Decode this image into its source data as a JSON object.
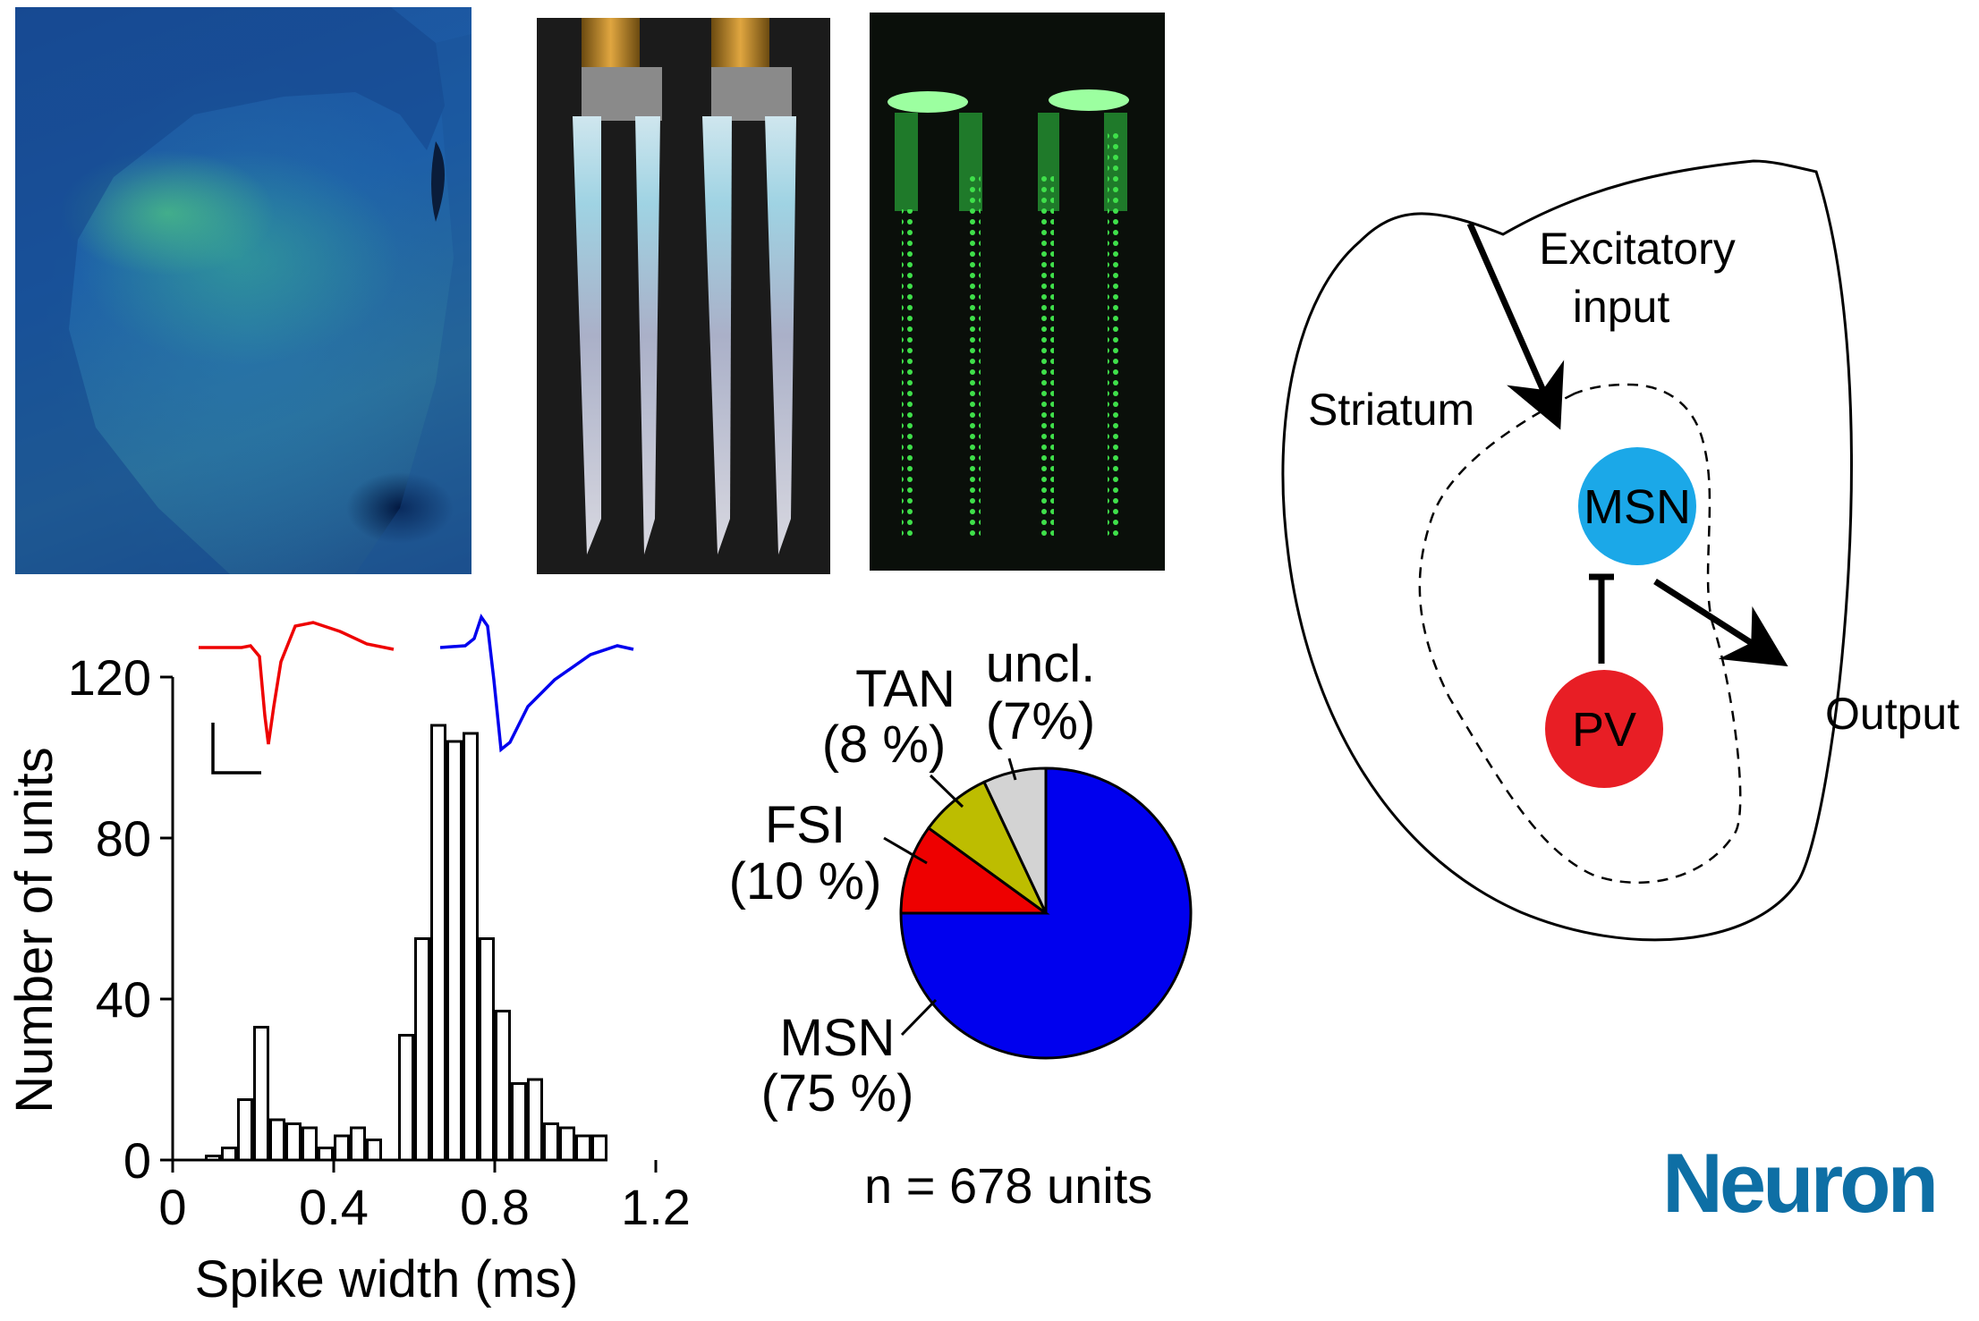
{
  "colors": {
    "bar_fill": "#ffffff",
    "bar_stroke": "#000000",
    "msn_blue": "#0000ee",
    "fsi_red": "#ee0000",
    "tan_yellow": "#bdbd00",
    "uncl_gray": "#d3d3d3",
    "msn_node": "#1ba8e8",
    "pv_node": "#e81e25",
    "logo": "#0e6fa5"
  },
  "histogram": {
    "ylabel": "Number of units",
    "xlabel": "Spike width (ms)",
    "yticks": [
      "0",
      "40",
      "80",
      "120"
    ],
    "xticks": [
      "0",
      "0.4",
      "0.8",
      "1.2"
    ]
  },
  "pie": {
    "n_label": "n =  678 units",
    "slices": [
      {
        "key": "MSN",
        "name": "MSN",
        "pct": "(75 %)",
        "color_key": "msn_blue"
      },
      {
        "key": "FSI",
        "name": "FSI",
        "pct": "(10 %)",
        "color_key": "fsi_red"
      },
      {
        "key": "TAN",
        "name": "TAN",
        "pct": "(8 %)",
        "color_key": "tan_yellow"
      },
      {
        "key": "uncl",
        "name": "uncl.",
        "pct": "(7%)",
        "color_key": "uncl_gray"
      }
    ]
  },
  "diagram": {
    "excitatory_line1": "Excitatory",
    "excitatory_line2": "input",
    "striatum": "Striatum",
    "msn": "MSN",
    "pv": "PV",
    "output": "Output"
  },
  "logo": "Neuron",
  "chart_data": [
    {
      "type": "bar",
      "xlabel": "Spike width (ms)",
      "ylabel": "Number of units",
      "xlim": [
        0,
        1.3
      ],
      "ylim": [
        0,
        130
      ],
      "x": [
        0.1,
        0.14,
        0.18,
        0.22,
        0.26,
        0.3,
        0.34,
        0.38,
        0.42,
        0.46,
        0.5,
        0.54,
        0.58,
        0.62,
        0.66,
        0.7,
        0.74,
        0.78,
        0.82,
        0.86,
        0.9,
        0.94,
        0.98,
        1.02,
        1.06,
        1.1,
        1.14,
        1.18
      ],
      "values": [
        1,
        3,
        15,
        33,
        10,
        9,
        8,
        3,
        6,
        8,
        5,
        0,
        31,
        55,
        108,
        104,
        106,
        55,
        37,
        19,
        20,
        9,
        8,
        6,
        6,
        0,
        0,
        0
      ]
    },
    {
      "type": "pie",
      "categories": [
        "MSN",
        "FSI",
        "TAN",
        "uncl."
      ],
      "values": [
        75,
        10,
        8,
        7
      ]
    }
  ]
}
